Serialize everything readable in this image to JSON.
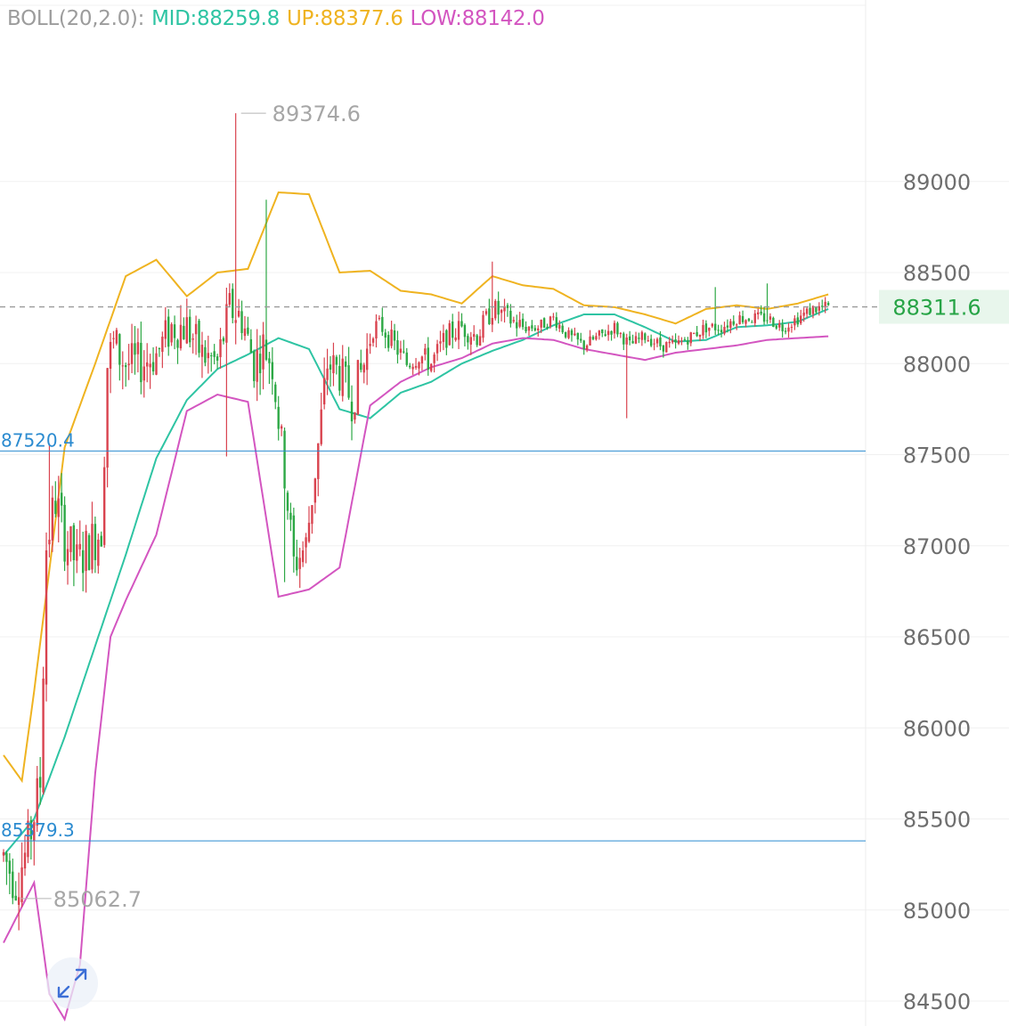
{
  "indicator": {
    "name": "BOLL(20,2.0):",
    "mid_label": "MID:88259.8",
    "up_label": "UP:88377.6",
    "low_label": "LOW:88142.0",
    "colors": {
      "name": "#9c9c9c",
      "mid": "#2ec4a3",
      "up": "#efb320",
      "low": "#d355c0"
    }
  },
  "colors": {
    "up_candle": "#d9434f",
    "down_candle": "#2da845",
    "level_line": "#2b8bd0",
    "current_bg": "#e8f6ec",
    "current_text": "#27a446"
  },
  "controls": {
    "expand_icon": "expand-arrows-icon"
  },
  "chart_data": {
    "type": "candlestick",
    "y_axis_ticks": [
      "89000",
      "88500",
      "88000",
      "87500",
      "87000",
      "86500",
      "86000",
      "85500",
      "85000",
      "84500"
    ],
    "ylim": [
      84400,
      89850
    ],
    "current_price": {
      "value": 88311.6,
      "label": "88311.6"
    },
    "horizontal_levels": [
      {
        "value": 87520.4,
        "label": "87520.4"
      },
      {
        "value": 85379.3,
        "label": "85379.3"
      }
    ],
    "extremes": {
      "high": {
        "value": 89374.6,
        "label": "89374.6",
        "candle_index": 76
      },
      "low": {
        "value": 85062.7,
        "label": "85062.7",
        "candle_index": 4
      }
    },
    "mid_band": [
      [
        0,
        85300
      ],
      [
        10,
        85500
      ],
      [
        20,
        85950
      ],
      [
        30,
        86450
      ],
      [
        40,
        86950
      ],
      [
        50,
        87480
      ],
      [
        60,
        87800
      ],
      [
        70,
        87970
      ],
      [
        80,
        88050
      ],
      [
        90,
        88140
      ],
      [
        100,
        88080
      ],
      [
        110,
        87750
      ],
      [
        120,
        87700
      ],
      [
        130,
        87840
      ],
      [
        140,
        87900
      ],
      [
        150,
        88000
      ],
      [
        160,
        88070
      ],
      [
        170,
        88130
      ],
      [
        180,
        88210
      ],
      [
        190,
        88270
      ],
      [
        200,
        88270
      ],
      [
        210,
        88200
      ],
      [
        220,
        88120
      ],
      [
        230,
        88130
      ],
      [
        240,
        88200
      ],
      [
        250,
        88210
      ],
      [
        260,
        88230
      ],
      [
        270,
        88300
      ]
    ],
    "upper_band": [
      [
        0,
        85850
      ],
      [
        6,
        85710
      ],
      [
        10,
        86200
      ],
      [
        20,
        87540
      ],
      [
        30,
        88000
      ],
      [
        40,
        88480
      ],
      [
        50,
        88570
      ],
      [
        60,
        88370
      ],
      [
        70,
        88500
      ],
      [
        80,
        88520
      ],
      [
        90,
        88940
      ],
      [
        100,
        88930
      ],
      [
        110,
        88500
      ],
      [
        120,
        88510
      ],
      [
        130,
        88400
      ],
      [
        140,
        88380
      ],
      [
        150,
        88330
      ],
      [
        160,
        88480
      ],
      [
        170,
        88430
      ],
      [
        180,
        88410
      ],
      [
        190,
        88320
      ],
      [
        200,
        88310
      ],
      [
        210,
        88270
      ],
      [
        220,
        88220
      ],
      [
        230,
        88300
      ],
      [
        240,
        88320
      ],
      [
        250,
        88300
      ],
      [
        260,
        88330
      ],
      [
        270,
        88380
      ]
    ],
    "lower_band": [
      [
        0,
        84820
      ],
      [
        10,
        85150
      ],
      [
        15,
        84540
      ],
      [
        20,
        84400
      ],
      [
        25,
        84700
      ],
      [
        30,
        85750
      ],
      [
        35,
        86500
      ],
      [
        40,
        86700
      ],
      [
        50,
        87060
      ],
      [
        60,
        87740
      ],
      [
        70,
        87830
      ],
      [
        80,
        87790
      ],
      [
        90,
        86720
      ],
      [
        100,
        86760
      ],
      [
        110,
        86880
      ],
      [
        120,
        87770
      ],
      [
        130,
        87900
      ],
      [
        140,
        87980
      ],
      [
        150,
        88030
      ],
      [
        160,
        88110
      ],
      [
        170,
        88140
      ],
      [
        180,
        88130
      ],
      [
        190,
        88080
      ],
      [
        200,
        88050
      ],
      [
        210,
        88020
      ],
      [
        220,
        88060
      ],
      [
        230,
        88080
      ],
      [
        240,
        88100
      ],
      [
        250,
        88130
      ],
      [
        260,
        88140
      ],
      [
        270,
        88150
      ]
    ]
  }
}
